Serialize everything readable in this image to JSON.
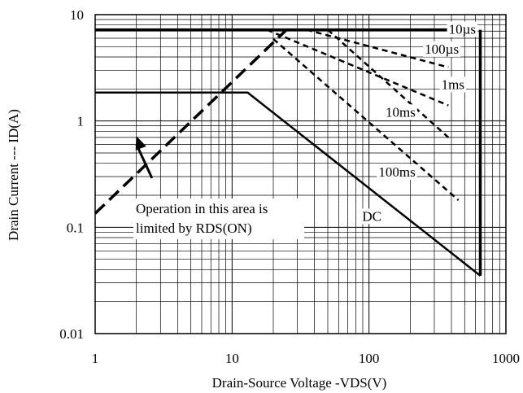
{
  "chart_data": {
    "type": "line",
    "title": "",
    "xlabel": "Drain-Source Voltage -VDS(V)",
    "ylabel": "Drain Current --- ID(A)",
    "xscale": "log",
    "yscale": "log",
    "xlim": [
      1,
      1000
    ],
    "ylim": [
      0.01,
      10
    ],
    "grid": true,
    "x_ticks": [
      {
        "value": 1,
        "label": "1"
      },
      {
        "value": 10,
        "label": "10"
      },
      {
        "value": 100,
        "label": "100"
      },
      {
        "value": 1000,
        "label": "1000"
      }
    ],
    "y_ticks": [
      {
        "value": 0.01,
        "label": "0.01"
      },
      {
        "value": 0.1,
        "label": "0.1"
      },
      {
        "value": 1,
        "label": "1"
      },
      {
        "value": 10,
        "label": "10"
      }
    ],
    "series": [
      {
        "name": "10µs",
        "style": "solid-thick",
        "points": [
          [
            1,
            7.2
          ],
          [
            380,
            7.2
          ]
        ]
      },
      {
        "name": "100µs",
        "style": "dashed",
        "points": [
          [
            35,
            7.2
          ],
          [
            380,
            3.2
          ]
        ]
      },
      {
        "name": "1ms",
        "style": "dashed",
        "points": [
          [
            18,
            7.2
          ],
          [
            380,
            1.4
          ]
        ]
      },
      {
        "name": "10ms",
        "style": "dashed",
        "points": [
          [
            50,
            7.2
          ],
          [
            380,
            0.7
          ]
        ]
      },
      {
        "name": "100ms",
        "style": "dashed",
        "points": [
          [
            20,
            5.9
          ],
          [
            450,
            0.18
          ]
        ]
      },
      {
        "name": "DC",
        "style": "solid",
        "points": [
          [
            1,
            1.85
          ],
          [
            13,
            1.85
          ],
          [
            650,
            0.035
          ]
        ]
      },
      {
        "name": "RDS(ON) limit",
        "style": "dashed-thick",
        "points": [
          [
            1,
            0.135
          ],
          [
            25,
            7.2
          ]
        ]
      }
    ],
    "vertical_limit": {
      "x": 650,
      "y_range": [
        0.035,
        7.2
      ]
    },
    "labels": [
      {
        "text": "10µs",
        "x": 480,
        "y": 6.6
      },
      {
        "text": "100µs",
        "x": 340,
        "y": 4.3
      },
      {
        "text": "1ms",
        "x": 410,
        "y": 2.0
      },
      {
        "text": "10ms",
        "x": 170,
        "y": 1.1
      },
      {
        "text": "100ms",
        "x": 160,
        "y": 0.3
      },
      {
        "text": "DC",
        "x": 105,
        "y": 0.115
      }
    ],
    "annotation": {
      "lines": [
        "Operation in this area is",
        "limited by RDS(ON)"
      ],
      "arrow_from": [
        2.6,
        0.29
      ],
      "arrow_to": [
        2.0,
        0.72
      ]
    }
  }
}
